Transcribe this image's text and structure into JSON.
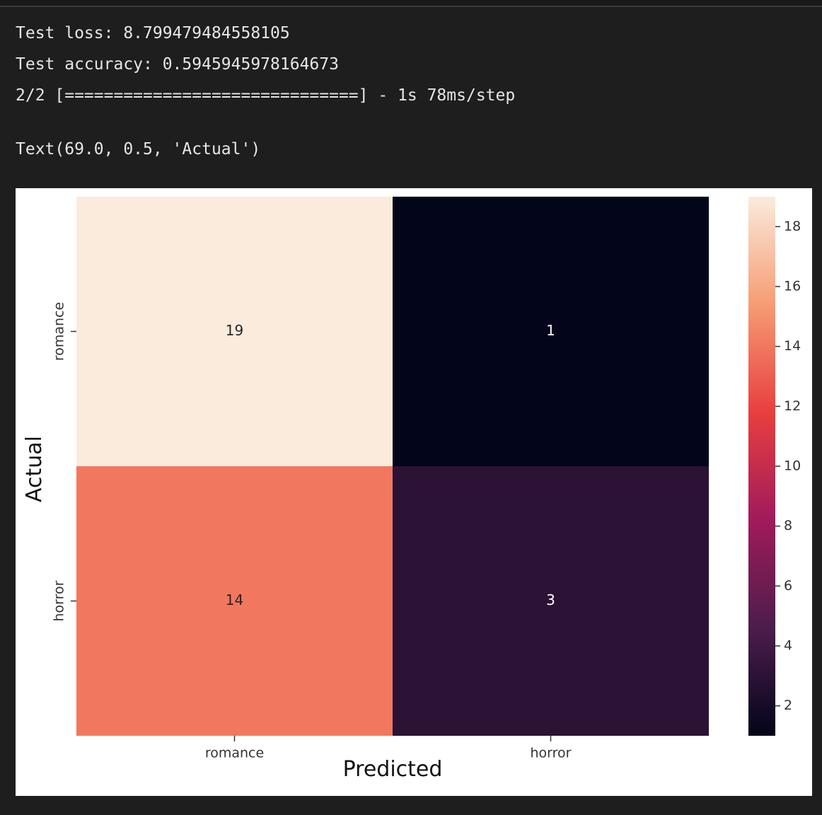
{
  "output_lines": [
    "Test loss: 8.799479484558105",
    "Test accuracy: 0.5945945978164673",
    "2/2 [==============================] - 1s 78ms/step",
    "Text(69.0, 0.5, 'Actual')"
  ],
  "chart_data": {
    "type": "heatmap",
    "x_categories": [
      "romance",
      "horror"
    ],
    "y_categories": [
      "romance",
      "horror"
    ],
    "values": [
      [
        19,
        1
      ],
      [
        14,
        3
      ]
    ],
    "xlabel": "Predicted",
    "ylabel": "Actual",
    "clim": [
      1,
      19
    ],
    "cbar_ticks": [
      2,
      4,
      6,
      8,
      10,
      12,
      14,
      16,
      18
    ],
    "colormap": [
      "#03051a",
      "#4c1d4b",
      "#a11a5b",
      "#e83f3f",
      "#f69c73",
      "#faebdd"
    ]
  }
}
